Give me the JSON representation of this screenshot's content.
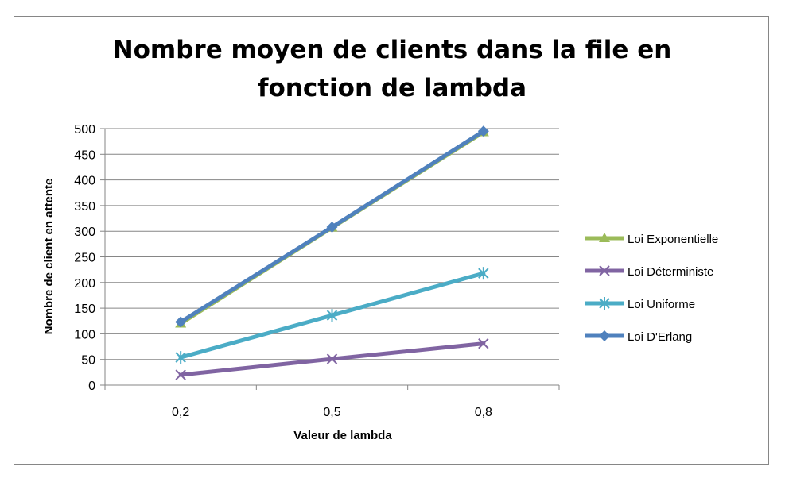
{
  "chart_data": {
    "type": "line",
    "title_lines": [
      "Nombre moyen de clients dans la file en",
      "fonction de lambda"
    ],
    "xlabel": "Valeur de lambda",
    "ylabel": "Nombre de client en attente",
    "categories": [
      "0,2",
      "0,5",
      "0,8"
    ],
    "ylim": [
      0,
      500
    ],
    "yticks": [
      0,
      50,
      100,
      150,
      200,
      250,
      300,
      350,
      400,
      450,
      500
    ],
    "grid": true,
    "legend_position": "right",
    "series": [
      {
        "name": "Loi Exponentielle",
        "values": [
          120,
          307,
          493
        ],
        "color": "#9BBB59",
        "marker": "triangle"
      },
      {
        "name": "Loi Déterministe",
        "values": [
          20,
          51,
          81
        ],
        "color": "#8064A2",
        "marker": "x"
      },
      {
        "name": "Loi Uniforme",
        "values": [
          54,
          136,
          218
        ],
        "color": "#4BACC6",
        "marker": "asterisk"
      },
      {
        "name": "Loi D'Erlang",
        "values": [
          123,
          308,
          495
        ],
        "color": "#4F81BD",
        "marker": "diamond"
      }
    ]
  }
}
